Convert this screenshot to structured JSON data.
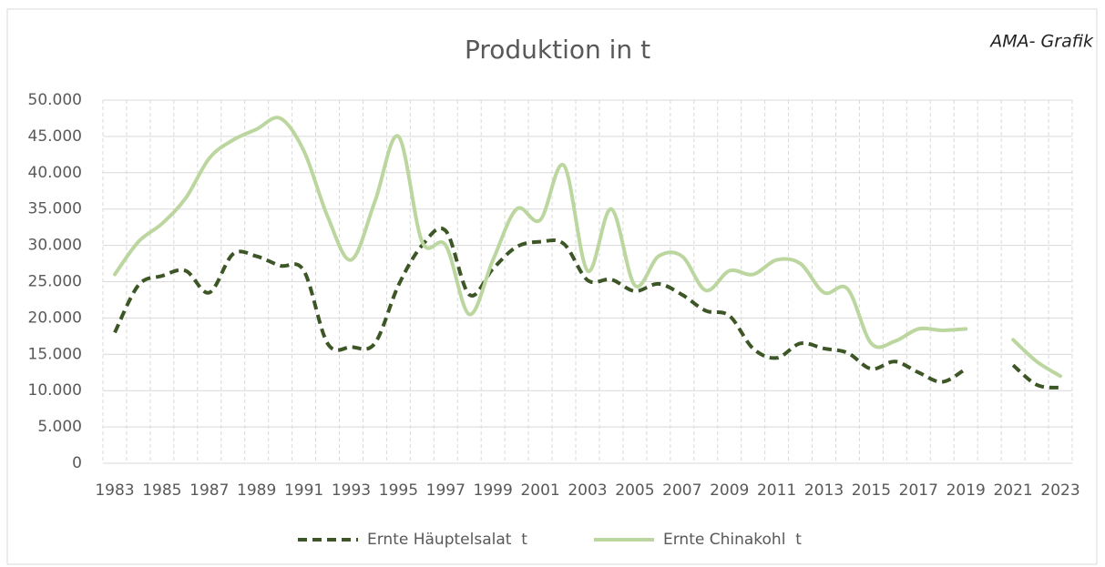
{
  "chart_data": {
    "type": "line",
    "title": "Produktion in t",
    "annotation": "AMA- Grafik",
    "categories": [
      "1983",
      null,
      "1985",
      null,
      "1987",
      null,
      "1989",
      null,
      "1991",
      null,
      "1993",
      null,
      "1995",
      null,
      "1997",
      null,
      "1999",
      null,
      "2001",
      null,
      "2003",
      null,
      "2005",
      null,
      "2007",
      null,
      "2009",
      null,
      "2011",
      null,
      "2013",
      null,
      "2015",
      null,
      "2017",
      null,
      "2019",
      null,
      "2021",
      null,
      "2023"
    ],
    "series": [
      {
        "name": "Ernte Häuptelsalat  t",
        "color": "#3d5626",
        "dashed": true,
        "values": [
          18000,
          24500,
          25800,
          26500,
          23500,
          28800,
          28500,
          27200,
          26500,
          16500,
          16000,
          16500,
          24500,
          30000,
          32000,
          23200,
          26800,
          29800,
          30500,
          30200,
          25200,
          25300,
          23700,
          24700,
          23200,
          21000,
          20300,
          15800,
          14500,
          16500,
          15800,
          15200,
          13000,
          14000,
          12500,
          11200,
          13000,
          null,
          13500,
          10800,
          10400
        ]
      },
      {
        "name": "Ernte Chinakohl  t",
        "color": "#bcd69f",
        "dashed": false,
        "values": [
          26000,
          30500,
          33000,
          36500,
          42000,
          44500,
          46000,
          47500,
          43000,
          34000,
          28000,
          36000,
          45000,
          30500,
          30000,
          20500,
          28000,
          35000,
          33500,
          41000,
          26500,
          35000,
          24500,
          28500,
          28500,
          23800,
          26500,
          26000,
          28000,
          27500,
          23500,
          24000,
          16500,
          16800,
          18500,
          18300,
          18500,
          null,
          17000,
          14000,
          12000
        ]
      }
    ],
    "ylim": [
      0,
      50000
    ],
    "yticks": [
      0,
      {
        "value": 5000,
        "label": "5.000"
      },
      {
        "value": 10000,
        "label": "10.000"
      },
      {
        "value": 15000,
        "label": "15.000"
      },
      {
        "value": 20000,
        "label": "20.000"
      },
      {
        "value": 25000,
        "label": "25.000"
      },
      {
        "value": 30000,
        "label": "30.000"
      },
      {
        "value": 35000,
        "label": "35.000"
      },
      {
        "value": 40000,
        "label": "40.000"
      },
      {
        "value": 45000,
        "label": "45.000"
      },
      {
        "value": 50000,
        "label": "50.000"
      }
    ],
    "grid": true,
    "legend": "bottom"
  }
}
